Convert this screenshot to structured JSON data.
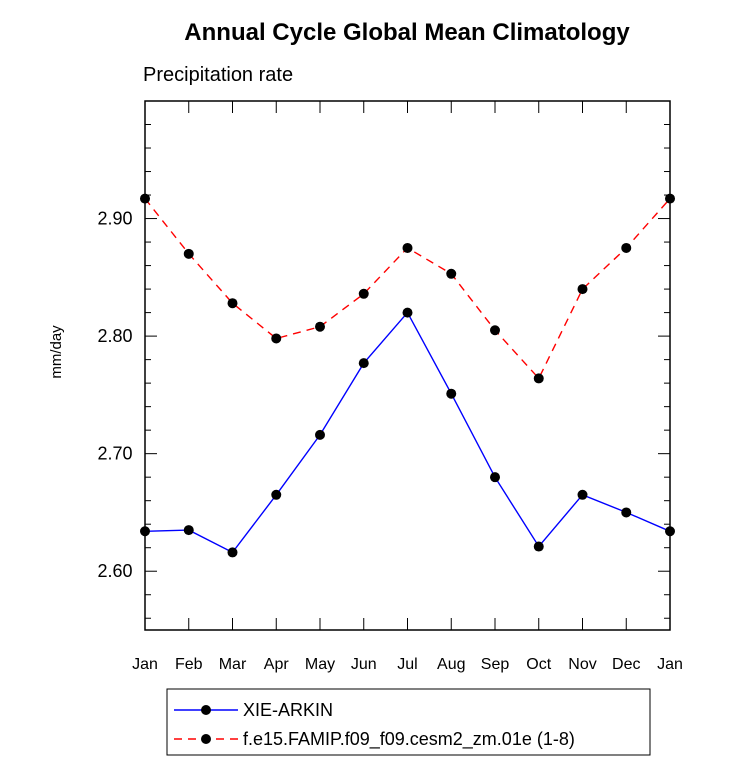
{
  "chart_data": {
    "type": "line",
    "title": "Annual Cycle Global Mean Climatology",
    "subtitle": "Precipitation rate",
    "ylabel": "mm/day",
    "xlabel": "",
    "categories": [
      "Jan",
      "Feb",
      "Mar",
      "Apr",
      "May",
      "Jun",
      "Jul",
      "Aug",
      "Sep",
      "Oct",
      "Nov",
      "Dec",
      "Jan"
    ],
    "ylim": [
      2.55,
      3.0
    ],
    "yticks": [
      "2.60",
      "2.70",
      "2.80",
      "2.90"
    ],
    "ytick_values": [
      2.6,
      2.7,
      2.8,
      2.9
    ],
    "grid": false,
    "legend_position": "bottom",
    "series": [
      {
        "name": "XIE-ARKIN",
        "color": "#0000ff",
        "line_style": "solid",
        "marker": "filled-circle",
        "values": [
          2.634,
          2.635,
          2.616,
          2.665,
          2.716,
          2.777,
          2.82,
          2.751,
          2.68,
          2.621,
          2.665,
          2.65,
          2.634
        ]
      },
      {
        "name": "f.e15.FAMIP.f09_f09.cesm2_zm.01e (1-8)",
        "color": "#ff0000",
        "line_style": "dashed",
        "marker": "filled-circle",
        "values": [
          2.917,
          2.87,
          2.828,
          2.798,
          2.808,
          2.836,
          2.875,
          2.853,
          2.805,
          2.764,
          2.84,
          2.875,
          2.917
        ]
      }
    ]
  }
}
